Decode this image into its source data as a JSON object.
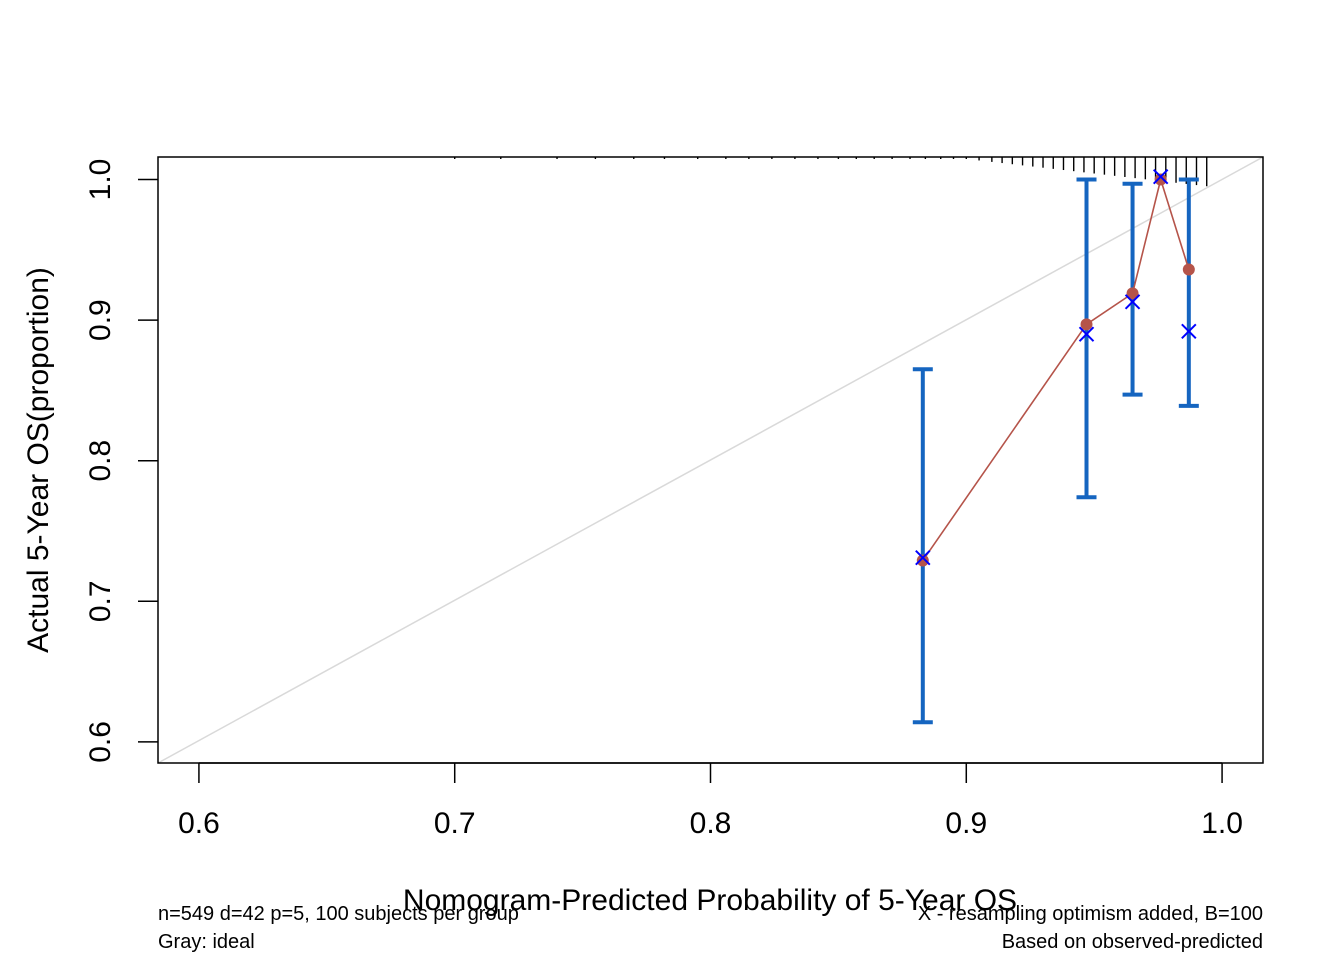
{
  "chart_data": {
    "type": "scatter",
    "xlabel": "Nomogram-Predicted Probability of 5-Year OS",
    "ylabel": "Actual 5-Year OS(proportion)",
    "xlim": [
      0.584,
      1.016
    ],
    "ylim": [
      0.585,
      1.016
    ],
    "x_ticks": [
      0.6,
      0.7,
      0.8,
      0.9,
      1.0
    ],
    "x_tick_labels": [
      "0.6",
      "0.7",
      "0.8",
      "0.9",
      "1.0"
    ],
    "y_ticks": [
      0.6,
      0.7,
      0.8,
      0.9,
      1.0
    ],
    "y_tick_labels": [
      "0.6",
      "0.7",
      "0.8",
      "0.9",
      "1.0"
    ],
    "ideal_line": {
      "from": [
        0.584,
        0.585
      ],
      "to": [
        1.016,
        1.016
      ],
      "color": "#d9d9d9"
    },
    "series": [
      {
        "points": [
          {
            "x": 0.883,
            "y": 0.729
          },
          {
            "x": 0.947,
            "y": 0.897
          },
          {
            "x": 0.965,
            "y": 0.919
          },
          {
            "x": 0.976,
            "y": 1.0
          },
          {
            "x": 0.987,
            "y": 0.936
          }
        ],
        "color": "#b5544a",
        "marker": "circle"
      },
      {
        "points": [
          {
            "x": 0.883,
            "y": 0.731
          },
          {
            "x": 0.947,
            "y": 0.89
          },
          {
            "x": 0.965,
            "y": 0.913
          },
          {
            "x": 0.976,
            "y": 1.002
          },
          {
            "x": 0.987,
            "y": 0.892
          }
        ],
        "color": "#0000ff",
        "marker": "x"
      }
    ],
    "error_bars": [
      {
        "x": 0.883,
        "low": 0.614,
        "high": 0.865
      },
      {
        "x": 0.947,
        "low": 0.774,
        "high": 1.0
      },
      {
        "x": 0.965,
        "low": 0.847,
        "high": 0.997
      },
      {
        "x": 0.987,
        "low": 0.839,
        "high": 1.0
      }
    ],
    "error_bar_color": "#1565c0",
    "rug_x": [
      0.7,
      0.718,
      0.74,
      0.755,
      0.77,
      0.782,
      0.795,
      0.806,
      0.815,
      0.824,
      0.833,
      0.842,
      0.85,
      0.857,
      0.864,
      0.871,
      0.878,
      0.884,
      0.89,
      0.895,
      0.9,
      0.905,
      0.91,
      0.914,
      0.918,
      0.922,
      0.926,
      0.93,
      0.934,
      0.938,
      0.942,
      0.946,
      0.95,
      0.954,
      0.958,
      0.962,
      0.966,
      0.97,
      0.974,
      0.978,
      0.982,
      0.986,
      0.99,
      0.994
    ],
    "grid": false,
    "footnotes": {
      "left_line1": "n=549 d=42 p=5, 100 subjects per group",
      "left_line2": "Gray: ideal",
      "right_line1": "X - resampling optimism added, B=100",
      "right_line2": "Based on observed-predicted"
    }
  }
}
